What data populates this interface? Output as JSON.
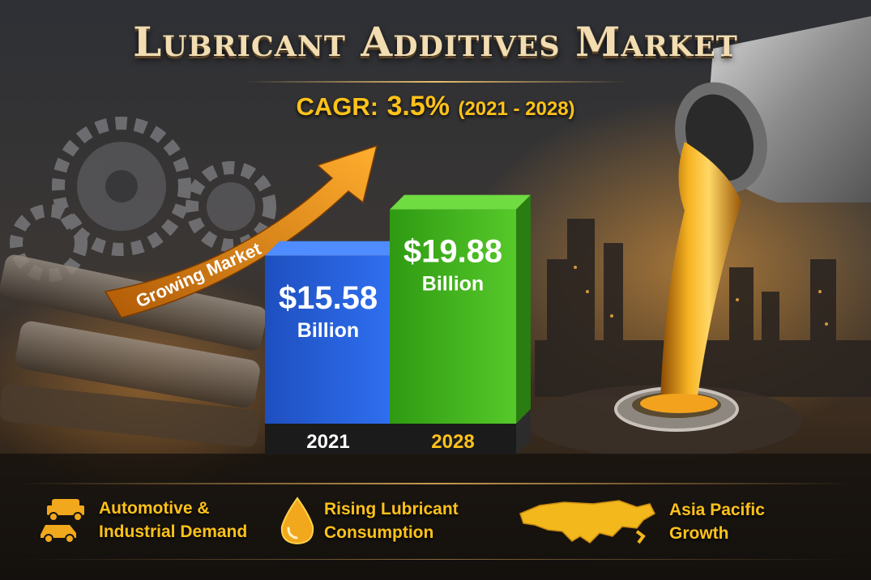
{
  "title": "Lubricant Additives Market",
  "cagr": {
    "label": "CAGR:",
    "value": "3.5%",
    "range": "(2021 - 2028)"
  },
  "arrow_label": "Growing Market",
  "colors": {
    "accent": "#ffc21a",
    "bar_2021": "#1f5ad6",
    "bar_2028": "#3fb51e",
    "arrow": "#f2901e"
  },
  "chart_data": {
    "type": "bar",
    "categories": [
      "2021",
      "2028"
    ],
    "values": [
      15.58,
      19.88
    ],
    "value_labels": [
      "$15.58",
      "$19.88"
    ],
    "unit_label": "Billion"
  },
  "features": [
    {
      "icon": "vehicles-icon",
      "text": "Automotive &\nIndustrial Demand"
    },
    {
      "icon": "oil-drop-icon",
      "text": "Rising Lubricant\nConsumption"
    },
    {
      "icon": "asia-map-icon",
      "text": "Asia Pacific\nGrowth"
    }
  ]
}
